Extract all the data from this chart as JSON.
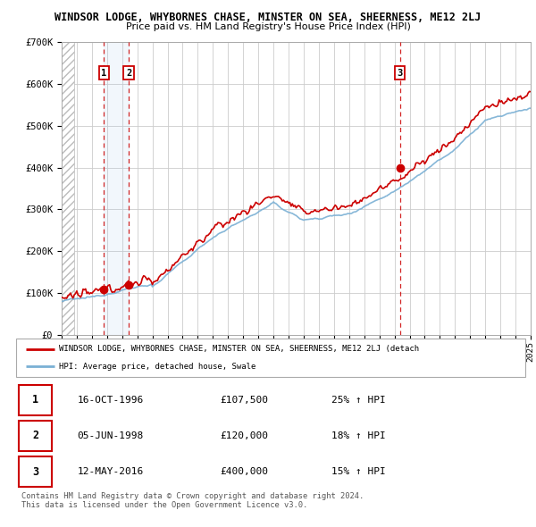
{
  "title": "WINDSOR LODGE, WHYBORNES CHASE, MINSTER ON SEA, SHEERNESS, ME12 2LJ",
  "subtitle": "Price paid vs. HM Land Registry's House Price Index (HPI)",
  "x_start_year": 1994,
  "x_end_year": 2025,
  "y_min": 0,
  "y_max": 700000,
  "y_ticks": [
    0,
    100000,
    200000,
    300000,
    400000,
    500000,
    600000,
    700000
  ],
  "y_tick_labels": [
    "£0",
    "£100K",
    "£200K",
    "£300K",
    "£400K",
    "£500K",
    "£600K",
    "£700K"
  ],
  "price_paid_color": "#cc0000",
  "hpi_color": "#7ab0d4",
  "grid_color": "#cccccc",
  "sale_points": [
    {
      "year": 1996.79,
      "price": 107500,
      "label": "1"
    },
    {
      "year": 1998.43,
      "price": 120000,
      "label": "2"
    },
    {
      "year": 2016.36,
      "price": 400000,
      "label": "3"
    }
  ],
  "sale_vline_years": [
    1996.79,
    1998.43,
    2016.36
  ],
  "highlight_band": [
    1996.79,
    1998.43
  ],
  "legend_red_label": "WINDSOR LODGE, WHYBORNES CHASE, MINSTER ON SEA, SHEERNESS, ME12 2LJ (detach",
  "legend_blue_label": "HPI: Average price, detached house, Swale",
  "table_rows": [
    {
      "num": "1",
      "date": "16-OCT-1996",
      "price": "£107,500",
      "pct": "25% ↑ HPI"
    },
    {
      "num": "2",
      "date": "05-JUN-1998",
      "price": "£120,000",
      "pct": "18% ↑ HPI"
    },
    {
      "num": "3",
      "date": "12-MAY-2016",
      "price": "£400,000",
      "pct": "15% ↑ HPI"
    }
  ],
  "footer": "Contains HM Land Registry data © Crown copyright and database right 2024.\nThis data is licensed under the Open Government Licence v3.0.",
  "background_color": "#ffffff",
  "plot_bg_color": "#ffffff"
}
